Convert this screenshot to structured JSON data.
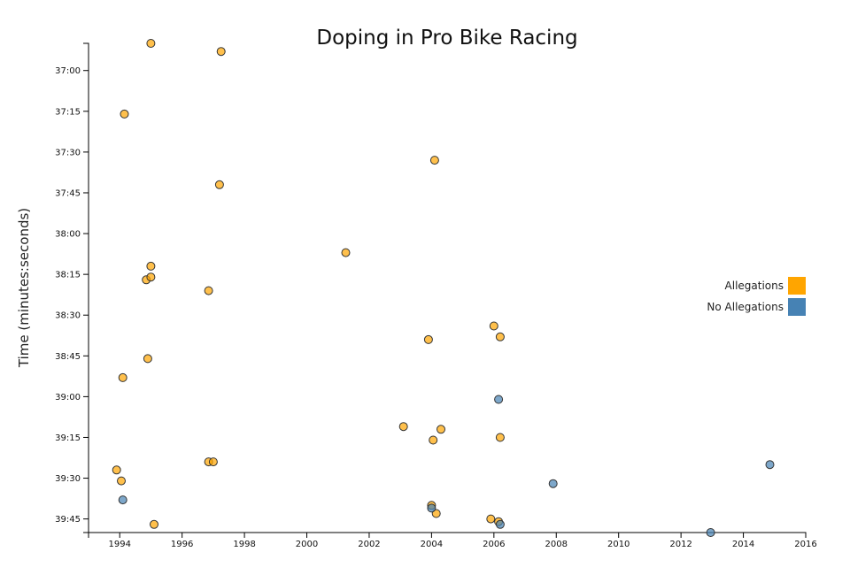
{
  "chart_data": {
    "type": "scatter",
    "title": "Doping in Pro Bike Racing",
    "xlabel": "",
    "ylabel": "Time (minutes:seconds)",
    "xlim": [
      1993,
      2016
    ],
    "ylim_seconds": [
      2210,
      2390
    ],
    "y_axis_inverted": true,
    "x_ticks": [
      1994,
      1996,
      1998,
      2000,
      2002,
      2004,
      2006,
      2008,
      2010,
      2012,
      2014,
      2016
    ],
    "y_ticks": [
      "37:00",
      "37:15",
      "37:30",
      "37:45",
      "38:00",
      "38:15",
      "38:30",
      "38:45",
      "39:00",
      "39:15",
      "39:30",
      "39:45"
    ],
    "legend_position": "right",
    "grid": false,
    "series": [
      {
        "name": "Allegations",
        "color": "#ffa500",
        "points": [
          {
            "x": 1995.0,
            "y": "36:50"
          },
          {
            "x": 1997.25,
            "y": "36:53"
          },
          {
            "x": 1994.15,
            "y": "37:16"
          },
          {
            "x": 2004.1,
            "y": "37:33"
          },
          {
            "x": 1997.2,
            "y": "37:42"
          },
          {
            "x": 2001.25,
            "y": "38:07"
          },
          {
            "x": 1995.0,
            "y": "38:12"
          },
          {
            "x": 1994.85,
            "y": "38:17"
          },
          {
            "x": 1995.0,
            "y": "38:16"
          },
          {
            "x": 1996.85,
            "y": "38:21"
          },
          {
            "x": 2006.0,
            "y": "38:34"
          },
          {
            "x": 2006.2,
            "y": "38:38"
          },
          {
            "x": 2003.9,
            "y": "38:39"
          },
          {
            "x": 1994.9,
            "y": "38:46"
          },
          {
            "x": 1994.1,
            "y": "38:53"
          },
          {
            "x": 2003.1,
            "y": "39:11"
          },
          {
            "x": 2004.3,
            "y": "39:12"
          },
          {
            "x": 2006.2,
            "y": "39:15"
          },
          {
            "x": 2004.05,
            "y": "39:16"
          },
          {
            "x": 1996.85,
            "y": "39:24"
          },
          {
            "x": 1997.0,
            "y": "39:24"
          },
          {
            "x": 1993.9,
            "y": "39:27"
          },
          {
            "x": 1994.05,
            "y": "39:31"
          },
          {
            "x": 2004.0,
            "y": "39:40"
          },
          {
            "x": 2004.15,
            "y": "39:43"
          },
          {
            "x": 2005.9,
            "y": "39:45"
          },
          {
            "x": 2006.15,
            "y": "39:46"
          },
          {
            "x": 1995.1,
            "y": "39:47"
          }
        ]
      },
      {
        "name": "No Allegations",
        "color": "#4682b4",
        "points": [
          {
            "x": 2006.15,
            "y": "39:01"
          },
          {
            "x": 2014.85,
            "y": "39:25"
          },
          {
            "x": 2007.9,
            "y": "39:32"
          },
          {
            "x": 1994.1,
            "y": "39:38"
          },
          {
            "x": 2004.0,
            "y": "39:41"
          },
          {
            "x": 2006.2,
            "y": "39:47"
          },
          {
            "x": 2012.95,
            "y": "39:50"
          }
        ]
      }
    ]
  }
}
